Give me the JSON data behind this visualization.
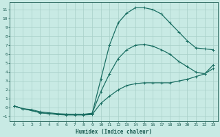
{
  "xlabel": "Humidex (Indice chaleur)",
  "background_color": "#c8eae4",
  "grid_color": "#a8cfc8",
  "line_color": "#1a6e62",
  "xlim": [
    -0.5,
    23.5
  ],
  "ylim": [
    -1.5,
    11.8
  ],
  "xticks": [
    0,
    1,
    2,
    3,
    4,
    5,
    6,
    7,
    8,
    9,
    10,
    11,
    12,
    13,
    14,
    15,
    16,
    17,
    18,
    19,
    20,
    21,
    22,
    23
  ],
  "yticks": [
    -1,
    0,
    1,
    2,
    3,
    4,
    5,
    6,
    7,
    8,
    9,
    10,
    11
  ],
  "curve1_x": [
    0,
    1,
    2,
    3,
    4,
    5,
    6,
    7,
    8,
    9,
    10,
    11,
    12,
    13,
    14,
    15,
    16,
    17,
    18,
    19,
    20,
    21,
    22,
    23
  ],
  "curve1_y": [
    0.2,
    -0.1,
    -0.3,
    -0.55,
    -0.65,
    -0.75,
    -0.8,
    -0.8,
    -0.8,
    -0.75,
    0.5,
    1.3,
    2.0,
    2.5,
    2.7,
    2.8,
    2.8,
    2.8,
    2.8,
    3.0,
    3.2,
    3.5,
    3.8,
    4.8
  ],
  "curve2_x": [
    0,
    1,
    2,
    3,
    4,
    5,
    6,
    7,
    8,
    9,
    10,
    11,
    12,
    13,
    14,
    15,
    16,
    17,
    18,
    19,
    20,
    21,
    22,
    23
  ],
  "curve2_y": [
    0.2,
    -0.1,
    -0.2,
    -0.45,
    -0.55,
    -0.65,
    -0.7,
    -0.72,
    -0.72,
    -0.6,
    1.8,
    3.8,
    5.5,
    6.5,
    7.0,
    7.1,
    6.9,
    6.5,
    6.0,
    5.2,
    4.6,
    4.0,
    3.8,
    4.4
  ],
  "curve3_x": [
    0,
    1,
    2,
    3,
    4,
    5,
    6,
    7,
    8,
    9,
    10,
    11,
    12,
    13,
    14,
    15,
    16,
    17,
    18,
    19,
    20,
    21,
    22,
    23
  ],
  "curve3_y": [
    0.2,
    -0.1,
    -0.3,
    -0.55,
    -0.65,
    -0.7,
    -0.75,
    -0.75,
    -0.75,
    -0.65,
    3.2,
    7.0,
    9.5,
    10.6,
    11.2,
    11.2,
    11.0,
    10.5,
    9.5,
    8.5,
    7.5,
    6.7,
    6.6,
    6.5
  ],
  "marker": "+",
  "markersize": 3,
  "linewidth": 0.9
}
